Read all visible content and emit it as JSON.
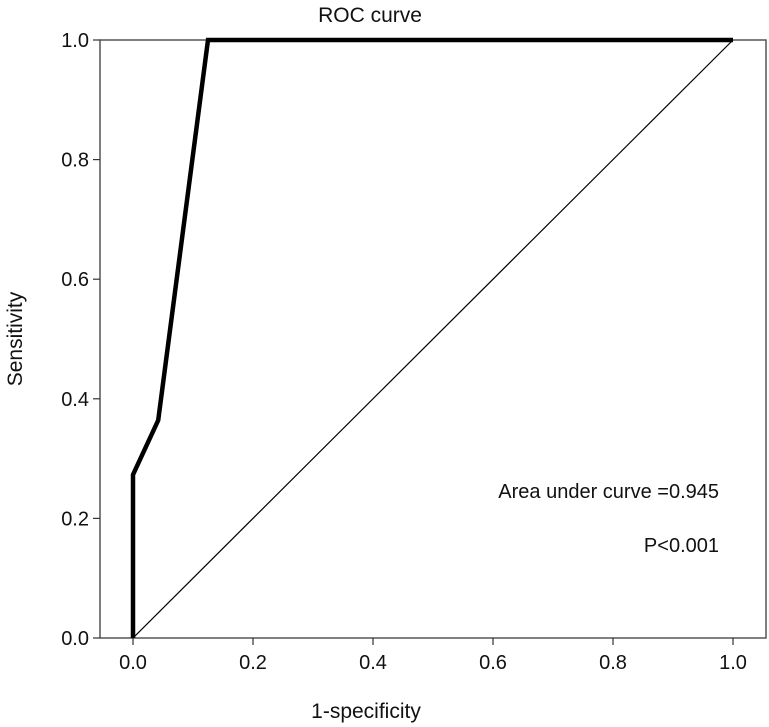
{
  "chart_data": {
    "type": "line",
    "title": "ROC curve",
    "xlabel": "1-specificity",
    "ylabel": "Sensitivity",
    "xlim": [
      0.0,
      1.0
    ],
    "ylim": [
      0.0,
      1.0
    ],
    "x_ticks": [
      0.0,
      0.2,
      0.4,
      0.6,
      0.8,
      1.0
    ],
    "y_ticks": [
      0.0,
      0.2,
      0.4,
      0.6,
      0.8,
      1.0
    ],
    "x_tick_labels": [
      "0.0",
      "0.2",
      "0.4",
      "0.6",
      "0.8",
      "1.0"
    ],
    "y_tick_labels": [
      "0.0",
      "0.2",
      "0.4",
      "0.6",
      "0.8",
      "1.0"
    ],
    "grid": false,
    "series": [
      {
        "role": "roc",
        "color": "#000000",
        "x": [
          0.0,
          0.0,
          0.042,
          0.125,
          1.0
        ],
        "y": [
          0.0,
          0.273,
          0.364,
          1.0,
          1.0
        ]
      },
      {
        "role": "reference",
        "color": "#000000",
        "x": [
          0.0,
          1.0
        ],
        "y": [
          0.0,
          1.0
        ]
      }
    ],
    "annotations": [
      {
        "text": "Area under curve =0.945"
      },
      {
        "text": "P<0.001"
      }
    ]
  }
}
